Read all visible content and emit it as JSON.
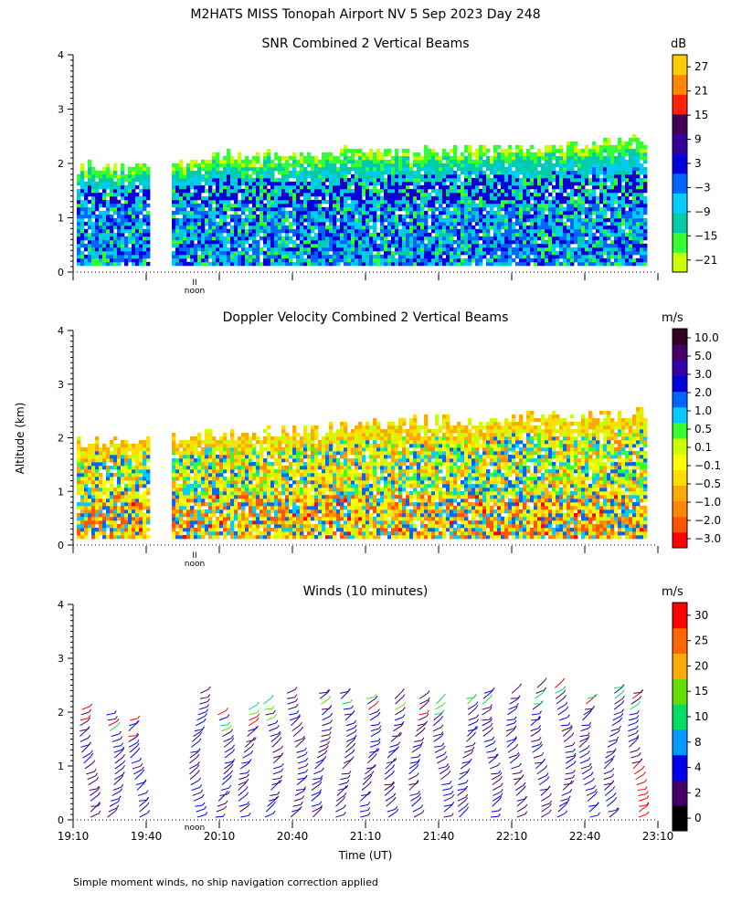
{
  "figure": {
    "title": "M2HATS MISS Tonopah Airport NV   5 Sep 2023 Day 248",
    "ylabel": "Altitude (km)",
    "xlabel": "Time (UT)",
    "footnote": "Simple moment winds, no ship navigation correction applied",
    "noon_label": "noon",
    "noon_marker": "II"
  },
  "chart_data": [
    {
      "type": "heatmap",
      "title": "SNR Combined 2 Vertical Beams",
      "colorbar": {
        "unit": "dB",
        "ticks": [
          "27",
          "21",
          "15",
          "9",
          "3",
          "−3",
          "−9",
          "−15",
          "−21"
        ],
        "colors": [
          "#ccff00",
          "#33ff33",
          "#00ccaa",
          "#00ccff",
          "#0066ff",
          "#0000dd",
          "#330099",
          "#440055",
          "#ff2200",
          "#ff8800",
          "#ffcc00"
        ]
      },
      "y_axis": {
        "range_km": [
          0,
          4
        ],
        "ticks": [
          "0",
          "1",
          "2",
          "3",
          "4"
        ]
      },
      "x_axis": {
        "range": [
          "19:10",
          "23:10"
        ],
        "tick_labels_shown": false
      },
      "data_gap": [
        "19:40",
        "19:50"
      ],
      "layer_top_km": {
        "19:10": 1.9,
        "19:40": 1.9,
        "20:10": 2.1,
        "21:40": 2.2,
        "22:40": 2.3,
        "23:05": 2.4
      },
      "peak_snr_layer_km": [
        1.2,
        1.8
      ]
    },
    {
      "type": "heatmap",
      "title": "Doppler Velocity Combined 2 Vertical Beams",
      "colorbar": {
        "unit": "m/s",
        "ticks": [
          "10.0",
          "5.0",
          "3.0",
          "2.0",
          "1.0",
          "0.5",
          "0.1",
          "−0.1",
          "−0.5",
          "−1.0",
          "−2.0",
          "−3.0"
        ],
        "colors": [
          "#ff0000",
          "#ff5500",
          "#ff8800",
          "#ffaa00",
          "#ffdd00",
          "#ffff00",
          "#ccff00",
          "#33ff33",
          "#00ccff",
          "#0066ff",
          "#0000dd",
          "#3300aa",
          "#440066",
          "#330022"
        ]
      },
      "y_axis": {
        "range_km": [
          0,
          4
        ],
        "ticks": [
          "0",
          "1",
          "2",
          "3",
          "4"
        ]
      },
      "x_axis": {
        "range": [
          "19:10",
          "23:10"
        ],
        "tick_labels_shown": false
      },
      "data_gap": [
        "19:40",
        "19:50"
      ],
      "layer_top_km": {
        "19:10": 1.9,
        "19:40": 1.9,
        "20:10": 2.0,
        "21:10": 2.2,
        "22:40": 2.4,
        "23:05": 2.4
      }
    },
    {
      "type": "scatter",
      "title": "Winds (10 minutes)",
      "colorbar": {
        "unit": "m/s",
        "ticks": [
          "30",
          "25",
          "20",
          "15",
          "10",
          "8",
          "4",
          "2",
          "0"
        ],
        "colors": [
          "#000000",
          "#440066",
          "#0000ee",
          "#0099ff",
          "#00dd66",
          "#66dd00",
          "#ffaa00",
          "#ff6600",
          "#ff0000"
        ]
      },
      "y_axis": {
        "range_km": [
          0,
          4
        ],
        "ticks": [
          "0",
          "1",
          "2",
          "3",
          "4"
        ]
      },
      "x_axis": {
        "range": [
          "19:10",
          "23:10"
        ],
        "tick_labels": [
          "19:10",
          "19:40",
          "20:10",
          "20:40",
          "21:10",
          "21:40",
          "22:10",
          "22:40",
          "23:10"
        ]
      },
      "profile_times_utc": [
        "19:15",
        "19:25",
        "19:35",
        "20:00",
        "20:10",
        "20:20",
        "20:30",
        "20:40",
        "20:50",
        "21:00",
        "21:10",
        "21:20",
        "21:30",
        "21:40",
        "21:50",
        "22:00",
        "22:10",
        "22:20",
        "22:30",
        "22:40",
        "22:50",
        "23:00"
      ],
      "profile_top_km": [
        2.1,
        2.0,
        1.9,
        2.4,
        2.0,
        2.1,
        2.2,
        2.4,
        2.4,
        2.4,
        2.3,
        2.3,
        2.3,
        2.2,
        2.3,
        2.4,
        2.4,
        2.5,
        2.5,
        2.3,
        2.5,
        2.4
      ],
      "typical_speed_ms": {
        "below_2km": "2-8",
        "near_top": "4-20"
      }
    }
  ]
}
